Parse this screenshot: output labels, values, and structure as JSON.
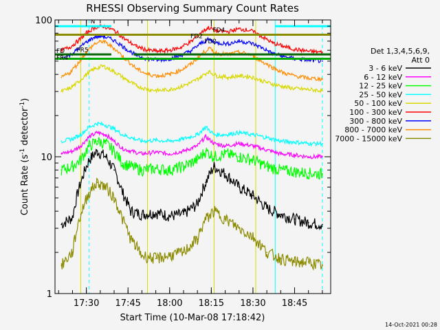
{
  "chart_data": {
    "type": "line",
    "title": "RHESSI Observing Summary Count Rates",
    "xlabel": "Start Time (10-Mar-08 17:18:42)",
    "ylabel": "Count Rate (s",
    "ylabel_sup": "-1",
    "ylabel_tail": " detector",
    "ylabel_sup2": "-1",
    "ylabel_close": ")",
    "y_scale": "log",
    "ylim": [
      1,
      100
    ],
    "y_ticks": [
      {
        "value": 1,
        "label": "1"
      },
      {
        "value": 10,
        "label": "10"
      },
      {
        "value": 100,
        "label": "100"
      }
    ],
    "xlim": [
      "17:18:42",
      "18:58:00"
    ],
    "x_ticks": [
      "17:30",
      "17:45",
      "18:00",
      "18:15",
      "18:30",
      "18:45"
    ],
    "legend_header": [
      "Det 1,3,4,5,6,9,",
      "Att 0"
    ],
    "legend_placement": "right",
    "series": [
      {
        "name": "3 - 6 keV",
        "color": "#000000",
        "points": [
          [
            "17:21",
            3.2
          ],
          [
            "17:25",
            3.6
          ],
          [
            "17:28",
            6.5
          ],
          [
            "17:31",
            9.5
          ],
          [
            "17:34",
            11.0
          ],
          [
            "17:37",
            10.0
          ],
          [
            "17:40",
            8.0
          ],
          [
            "17:43",
            5.5
          ],
          [
            "17:46",
            4.0
          ],
          [
            "17:50",
            3.8
          ],
          [
            "17:55",
            3.9
          ],
          [
            "18:00",
            3.7
          ],
          [
            "18:05",
            3.8
          ],
          [
            "18:10",
            4.5
          ],
          [
            "18:13",
            6.5
          ],
          [
            "18:16",
            8.5
          ],
          [
            "18:20",
            7.5
          ],
          [
            "18:25",
            6.0
          ],
          [
            "18:30",
            5.2
          ],
          [
            "18:35",
            4.2
          ],
          [
            "18:40",
            3.8
          ],
          [
            "18:45",
            3.5
          ],
          [
            "18:50",
            3.3
          ],
          [
            "18:55",
            3.2
          ]
        ]
      },
      {
        "name": "6 - 12 keV",
        "color": "#ff00ff",
        "points": [
          [
            "17:21",
            10.5
          ],
          [
            "17:25",
            11.0
          ],
          [
            "17:28",
            12.0
          ],
          [
            "17:31",
            14.0
          ],
          [
            "17:34",
            15.0
          ],
          [
            "17:37",
            14.5
          ],
          [
            "17:40",
            13.0
          ],
          [
            "17:43",
            11.5
          ],
          [
            "17:46",
            11.0
          ],
          [
            "17:50",
            10.5
          ],
          [
            "17:55",
            10.8
          ],
          [
            "18:00",
            10.5
          ],
          [
            "18:05",
            11.0
          ],
          [
            "18:10",
            12.0
          ],
          [
            "18:13",
            14.0
          ],
          [
            "18:16",
            12.5
          ],
          [
            "18:20",
            12.0
          ],
          [
            "18:25",
            12.5
          ],
          [
            "18:30",
            12.0
          ],
          [
            "18:35",
            11.2
          ],
          [
            "18:40",
            10.5
          ],
          [
            "18:45",
            10.3
          ],
          [
            "18:50",
            10.0
          ],
          [
            "18:55",
            10.0
          ]
        ]
      },
      {
        "name": "12 - 25 keV",
        "color": "#00ff00",
        "points": [
          [
            "17:21",
            8.0
          ],
          [
            "17:25",
            8.5
          ],
          [
            "17:28",
            9.5
          ],
          [
            "17:31",
            12.0
          ],
          [
            "17:34",
            13.0
          ],
          [
            "17:37",
            12.5
          ],
          [
            "17:40",
            11.0
          ],
          [
            "17:43",
            9.0
          ],
          [
            "17:46",
            8.5
          ],
          [
            "17:50",
            8.0
          ],
          [
            "17:55",
            8.2
          ],
          [
            "18:00",
            8.0
          ],
          [
            "18:05",
            8.5
          ],
          [
            "18:10",
            9.5
          ],
          [
            "18:13",
            11.0
          ],
          [
            "18:16",
            10.0
          ],
          [
            "18:20",
            10.5
          ],
          [
            "18:25",
            10.0
          ],
          [
            "18:30",
            9.5
          ],
          [
            "18:35",
            8.5
          ],
          [
            "18:40",
            8.0
          ],
          [
            "18:45",
            7.8
          ],
          [
            "18:50",
            7.6
          ],
          [
            "18:55",
            7.5
          ]
        ]
      },
      {
        "name": "25 - 50 keV",
        "color": "#00ffff",
        "points": [
          [
            "17:21",
            13.0
          ],
          [
            "17:25",
            13.5
          ],
          [
            "17:28",
            14.5
          ],
          [
            "17:31",
            16.5
          ],
          [
            "17:34",
            17.5
          ],
          [
            "17:37",
            17.0
          ],
          [
            "17:40",
            16.0
          ],
          [
            "17:43",
            14.5
          ],
          [
            "17:46",
            13.8
          ],
          [
            "17:50",
            13.0
          ],
          [
            "17:55",
            13.2
          ],
          [
            "18:00",
            13.0
          ],
          [
            "18:05",
            13.5
          ],
          [
            "18:10",
            14.5
          ],
          [
            "18:13",
            16.5
          ],
          [
            "18:16",
            14.5
          ],
          [
            "18:20",
            14.5
          ],
          [
            "18:25",
            15.0
          ],
          [
            "18:30",
            14.5
          ],
          [
            "18:35",
            13.8
          ],
          [
            "18:40",
            13.0
          ],
          [
            "18:45",
            12.8
          ],
          [
            "18:50",
            12.5
          ],
          [
            "18:55",
            12.5
          ]
        ]
      },
      {
        "name": "50 - 100 keV",
        "color": "#d8d800",
        "points": [
          [
            "17:21",
            30.0
          ],
          [
            "17:24",
            31.5
          ],
          [
            "17:27",
            35.0
          ],
          [
            "17:30",
            40.0
          ],
          [
            "17:33",
            44.0
          ],
          [
            "17:36",
            46.0
          ],
          [
            "17:40",
            42.0
          ],
          [
            "17:44",
            37.0
          ],
          [
            "17:48",
            33.0
          ],
          [
            "17:52",
            31.0
          ],
          [
            "17:56",
            30.5
          ],
          [
            "18:00",
            31.0
          ],
          [
            "18:04",
            32.5
          ],
          [
            "18:08",
            35.0
          ],
          [
            "18:11",
            38.0
          ],
          [
            "18:14",
            42.0
          ],
          [
            "18:17",
            39.0
          ],
          [
            "18:21",
            38.0
          ],
          [
            "18:25",
            39.0
          ],
          [
            "18:29",
            38.5
          ],
          [
            "18:33",
            36.0
          ],
          [
            "18:37",
            34.0
          ],
          [
            "18:41",
            32.5
          ],
          [
            "18:45",
            31.5
          ],
          [
            "18:50",
            31.0
          ],
          [
            "18:55",
            30.5
          ]
        ]
      },
      {
        "name": "100 - 300 keV",
        "color": "#ff0000",
        "points": [
          [
            "17:21",
            60.0
          ],
          [
            "17:24",
            63.0
          ],
          [
            "17:27",
            70.0
          ],
          [
            "17:30",
            80.0
          ],
          [
            "17:33",
            88.0
          ],
          [
            "17:36",
            90.0
          ],
          [
            "17:40",
            84.0
          ],
          [
            "17:44",
            72.0
          ],
          [
            "17:48",
            64.0
          ],
          [
            "17:52",
            60.0
          ],
          [
            "17:56",
            59.0
          ],
          [
            "18:00",
            60.0
          ],
          [
            "18:04",
            63.0
          ],
          [
            "18:08",
            70.0
          ],
          [
            "18:11",
            80.0
          ],
          [
            "18:14",
            88.0
          ],
          [
            "18:17",
            83.0
          ],
          [
            "18:21",
            82.0
          ],
          [
            "18:25",
            86.0
          ],
          [
            "18:29",
            84.0
          ],
          [
            "18:33",
            76.0
          ],
          [
            "18:37",
            68.0
          ],
          [
            "18:41",
            64.0
          ],
          [
            "18:45",
            61.0
          ],
          [
            "18:50",
            59.0
          ],
          [
            "18:55",
            58.0
          ]
        ]
      },
      {
        "name": "300 - 800 keV",
        "color": "#0000ff",
        "points": [
          [
            "17:21",
            52.0
          ],
          [
            "17:24",
            55.0
          ],
          [
            "17:27",
            61.0
          ],
          [
            "17:30",
            69.0
          ],
          [
            "17:33",
            75.0
          ],
          [
            "17:36",
            76.0
          ],
          [
            "17:40",
            71.0
          ],
          [
            "17:44",
            62.0
          ],
          [
            "17:48",
            55.0
          ],
          [
            "17:52",
            52.0
          ],
          [
            "17:56",
            51.0
          ],
          [
            "18:00",
            52.0
          ],
          [
            "18:04",
            55.0
          ],
          [
            "18:08",
            60.0
          ],
          [
            "18:11",
            67.0
          ],
          [
            "18:14",
            72.0
          ],
          [
            "18:17",
            68.0
          ],
          [
            "18:21",
            67.0
          ],
          [
            "18:25",
            70.0
          ],
          [
            "18:29",
            68.0
          ],
          [
            "18:33",
            63.0
          ],
          [
            "18:37",
            57.0
          ],
          [
            "18:41",
            54.0
          ],
          [
            "18:45",
            52.0
          ],
          [
            "18:50",
            51.0
          ],
          [
            "18:55",
            50.0
          ]
        ]
      },
      {
        "name": "800 - 7000 keV",
        "color": "#ff8c00",
        "points": [
          [
            "17:21",
            38.0
          ],
          [
            "17:24",
            41.0
          ],
          [
            "17:27",
            48.0
          ],
          [
            "17:30",
            58.0
          ],
          [
            "17:33",
            67.0
          ],
          [
            "17:36",
            70.0
          ],
          [
            "17:40",
            62.0
          ],
          [
            "17:44",
            52.0
          ],
          [
            "17:48",
            44.0
          ],
          [
            "17:52",
            40.0
          ],
          [
            "17:56",
            39.0
          ],
          [
            "18:00",
            40.0
          ],
          [
            "18:04",
            43.0
          ],
          [
            "18:08",
            48.0
          ],
          [
            "18:11",
            55.0
          ],
          [
            "18:14",
            62.0
          ],
          [
            "18:17",
            57.0
          ],
          [
            "18:21",
            56.0
          ],
          [
            "18:25",
            58.0
          ],
          [
            "18:29",
            56.0
          ],
          [
            "18:33",
            50.0
          ],
          [
            "18:37",
            45.0
          ],
          [
            "18:41",
            41.0
          ],
          [
            "18:45",
            39.0
          ],
          [
            "18:50",
            37.5
          ],
          [
            "18:55",
            37.0
          ]
        ]
      },
      {
        "name": "7000 - 15000 keV",
        "color": "#8b8b00",
        "points": [
          [
            "17:21",
            1.6
          ],
          [
            "17:25",
            2.0
          ],
          [
            "17:28",
            3.8
          ],
          [
            "17:31",
            5.5
          ],
          [
            "17:34",
            6.5
          ],
          [
            "17:37",
            6.0
          ],
          [
            "17:40",
            5.0
          ],
          [
            "17:43",
            3.5
          ],
          [
            "17:46",
            2.5
          ],
          [
            "17:50",
            1.9
          ],
          [
            "17:55",
            1.8
          ],
          [
            "18:00",
            1.9
          ],
          [
            "18:05",
            2.0
          ],
          [
            "18:10",
            2.5
          ],
          [
            "18:13",
            3.5
          ],
          [
            "18:16",
            4.0
          ],
          [
            "18:20",
            3.5
          ],
          [
            "18:25",
            3.0
          ],
          [
            "18:30",
            2.6
          ],
          [
            "18:35",
            2.0
          ],
          [
            "18:40",
            1.8
          ],
          [
            "18:45",
            1.7
          ],
          [
            "18:50",
            1.7
          ],
          [
            "18:55",
            1.6
          ]
        ]
      }
    ],
    "state_bands": [
      {
        "label": "N",
        "color": "#00ffff",
        "y": 90,
        "segments": [
          [
            "17:18:42",
            "17:39"
          ],
          [
            "18:38",
            "18:58"
          ]
        ]
      },
      {
        "label": "FD",
        "color": "#8b8b00",
        "y": 78,
        "segments": [
          [
            "17:18:42",
            "18:58"
          ]
        ]
      },
      {
        "label": "FR",
        "color": "#006400",
        "y": 56,
        "segments": [
          [
            "17:18:42",
            "17:39"
          ],
          [
            "17:47",
            "18:58"
          ]
        ]
      },
      {
        "label": "FD",
        "color": "#00aa00",
        "y": 52,
        "segments": [
          [
            "17:18:42",
            "18:58"
          ]
        ]
      }
    ],
    "band_labels": [
      {
        "text": "N",
        "color": "#0000ff",
        "t": "17:31",
        "y": 92
      },
      {
        "text": "FD4",
        "color": "#8b8b00",
        "t": "18:15",
        "y": 80
      },
      {
        "text": "FD2",
        "color": "#8b8b00",
        "t": "18:07",
        "y": 72
      },
      {
        "text": "FD2",
        "color": "#8b8b00",
        "t": "18:12",
        "y": 66
      },
      {
        "text": "FD",
        "color": "#006400",
        "t": "17:18:42",
        "y": 56
      },
      {
        "text": "FR4",
        "color": "#006400",
        "t": "17:18:42",
        "y": 50
      },
      {
        "text": "FR5",
        "color": "#8b8b00",
        "t": "17:26",
        "y": 57
      }
    ],
    "vlines": [
      {
        "t": "17:18:42",
        "color": "#00ffff",
        "style": "solid"
      },
      {
        "t": "17:31",
        "color": "#00ffff",
        "style": "dashed"
      },
      {
        "t": "17:52",
        "color": "#d8d800",
        "style": "solid"
      },
      {
        "t": "18:16",
        "color": "#d8d800",
        "style": "solid"
      },
      {
        "t": "18:31",
        "color": "#d8d800",
        "style": "solid"
      },
      {
        "t": "18:38",
        "color": "#00ffff",
        "style": "solid"
      },
      {
        "t": "18:55",
        "color": "#00ffff",
        "style": "dashed"
      },
      {
        "t": "17:28",
        "color": "#d8d800",
        "style": "solid"
      }
    ]
  },
  "footer": {
    "timestamp": "14-Oct-2021 00:28"
  }
}
